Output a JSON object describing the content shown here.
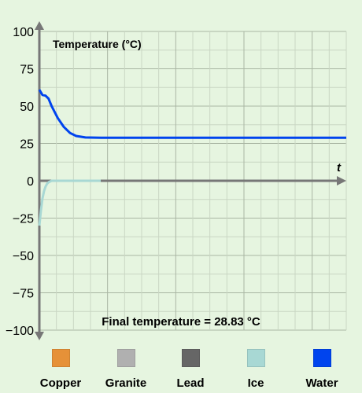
{
  "chart_data": {
    "type": "line",
    "title": "Temperature (°C)",
    "xlabel": "t",
    "ylabel": "",
    "ylim": [
      -100,
      100
    ],
    "yticks": [
      "100",
      "75",
      "50",
      "25",
      "0",
      "−25",
      "−50",
      "−75",
      "−100"
    ],
    "ytick_values": [
      100,
      75,
      50,
      25,
      0,
      -25,
      -50,
      -75,
      -100
    ],
    "grid": true,
    "annotation": "Final temperature = 28.83 °C",
    "series": [
      {
        "name": "Water",
        "color": "#0044ee",
        "x": [
          0,
          0.1,
          0.2,
          0.3,
          0.4,
          0.6,
          0.8,
          1.0,
          1.2,
          1.5,
          2,
          3,
          4,
          6,
          8,
          10
        ],
        "y": [
          61,
          57.5,
          57,
          55,
          50,
          42,
          36,
          32,
          30,
          29,
          28.83,
          28.83,
          28.83,
          28.83,
          28.83,
          28.83
        ]
      },
      {
        "name": "Ice",
        "color": "#a8d8d4",
        "x": [
          0,
          0.05,
          0.1,
          0.15,
          0.2,
          0.25,
          0.3,
          0.4,
          0.6,
          1.0,
          1.5,
          2.0
        ],
        "y": [
          -30,
          -20,
          -12,
          -7,
          -4,
          -2,
          -1,
          0,
          0,
          0,
          0,
          0
        ]
      }
    ]
  },
  "legend": {
    "items": [
      {
        "label": "Copper",
        "color": "#e69138"
      },
      {
        "label": "Granite",
        "color": "#b0b0b0"
      },
      {
        "label": "Lead",
        "color": "#666666"
      },
      {
        "label": "Ice",
        "color": "#a8d8d4"
      },
      {
        "label": "Water",
        "color": "#0044ee"
      }
    ]
  }
}
